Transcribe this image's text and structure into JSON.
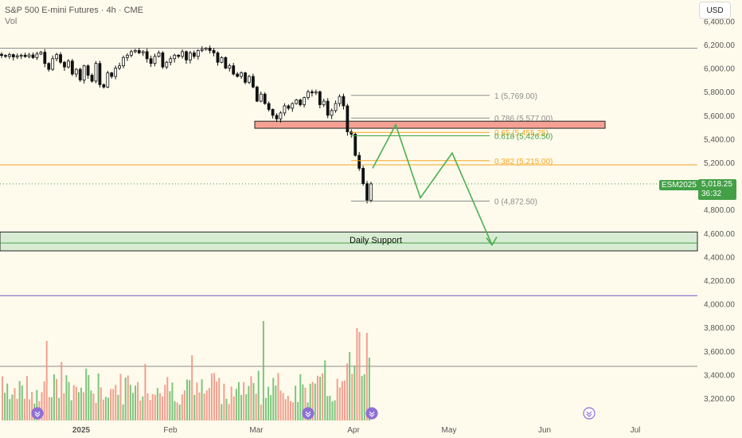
{
  "header": {
    "title": "S&P 500 E-mini Futures · 4h · CME",
    "volume_label": "Vol"
  },
  "currency_button": "USD",
  "last_price": {
    "symbol": "ESM2025",
    "price": "5,018.25",
    "countdown": "36:32",
    "value": 5018.25
  },
  "colors": {
    "background": "#fffbec",
    "up": "#66bb6a",
    "down": "#ef8f7f",
    "fib_gray": "#9e9e9e",
    "fib_orange": "#f5a623",
    "fib_green": "#43a047",
    "arrow": "#4caf50",
    "support_fill": "#c8e6c9",
    "resistance_fill": "#f4a193",
    "blue_line": "#6a5acd"
  },
  "chart_data": {
    "type": "candlestick",
    "y_range": [
      3050,
      6450
    ],
    "y_ticks": [
      "6,400.00",
      "6,200.00",
      "6,000.00",
      "5,800.00",
      "5,600.00",
      "5,400.00",
      "5,200.00",
      "5,000.00",
      "4,800.00",
      "4,600.00",
      "4,400.00",
      "4,200.00",
      "4,000.00",
      "3,800.00",
      "3,600.00",
      "3,400.00",
      "3,200.00"
    ],
    "y_tick_values": [
      6400,
      6200,
      6000,
      5800,
      5600,
      5400,
      5200,
      5000,
      4800,
      4600,
      4400,
      4200,
      4000,
      3800,
      3600,
      3400,
      3200
    ],
    "x_labels": [
      "2025",
      "Feb",
      "Mar",
      "Apr",
      "May",
      "Jun",
      "Jul"
    ],
    "x_label_bold": "2025",
    "fib_levels": [
      {
        "label": "1 (5,769.00)",
        "value": 5769,
        "color": "gray"
      },
      {
        "label": "0.786 (5,577.00)",
        "value": 5577,
        "color": "gray"
      },
      {
        "label": "0.65 (5,455.25)",
        "value": 5455.25,
        "color": "orange"
      },
      {
        "label": "0.618 (5,426.50)",
        "value": 5426.5,
        "color": "green"
      },
      {
        "label": "0.382 (5,215.00)",
        "value": 5215,
        "color": "orange"
      },
      {
        "label": "0 (4,872.50)",
        "value": 4872.5,
        "color": "gray"
      }
    ],
    "horizontal_lines": [
      {
        "value": 6170,
        "color": "gray"
      },
      {
        "value": 5180,
        "color": "orange"
      },
      {
        "value": 4070,
        "color": "blue"
      },
      {
        "value": 3470,
        "color": "gray"
      }
    ],
    "zones": [
      {
        "name": "resistance",
        "from": 5490,
        "to": 5550
      },
      {
        "name": "Daily Support",
        "from": 4450,
        "to": 4610
      }
    ],
    "support_label": "Daily Support",
    "projection_path": [
      [
        5150,
        0
      ],
      [
        5520,
        1
      ],
      [
        4900,
        2
      ],
      [
        5280,
        3
      ],
      [
        4500,
        4
      ]
    ],
    "candle_close_path": [
      6108,
      6100,
      6115,
      6095,
      6105,
      6110,
      6098,
      6112,
      6090,
      6120,
      6135,
      6040,
      5990,
      6080,
      6115,
      6050,
      6010,
      6060,
      5950,
      5990,
      5900,
      6020,
      5940,
      5890,
      6040,
      5860,
      5840,
      5960,
      5930,
      6000,
      6020,
      6090,
      6110,
      6140,
      6150,
      6130,
      6140,
      6080,
      6040,
      6100,
      6130,
      6010,
      6050,
      6080,
      6110,
      6100,
      6140,
      6070,
      6130,
      6100,
      6150,
      6160,
      6170,
      6150,
      6130,
      6050,
      6090,
      6000,
      6020,
      5950,
      5930,
      5960,
      5880,
      5930,
      5840,
      5720,
      5780,
      5700,
      5650,
      5600,
      5570,
      5620,
      5680,
      5660,
      5700,
      5730,
      5690,
      5750,
      5800,
      5790,
      5800,
      5690,
      5720,
      5600,
      5640,
      5700,
      5760,
      5680,
      5460,
      5440,
      5260,
      5150,
      5020,
      4880,
      5018
    ]
  }
}
